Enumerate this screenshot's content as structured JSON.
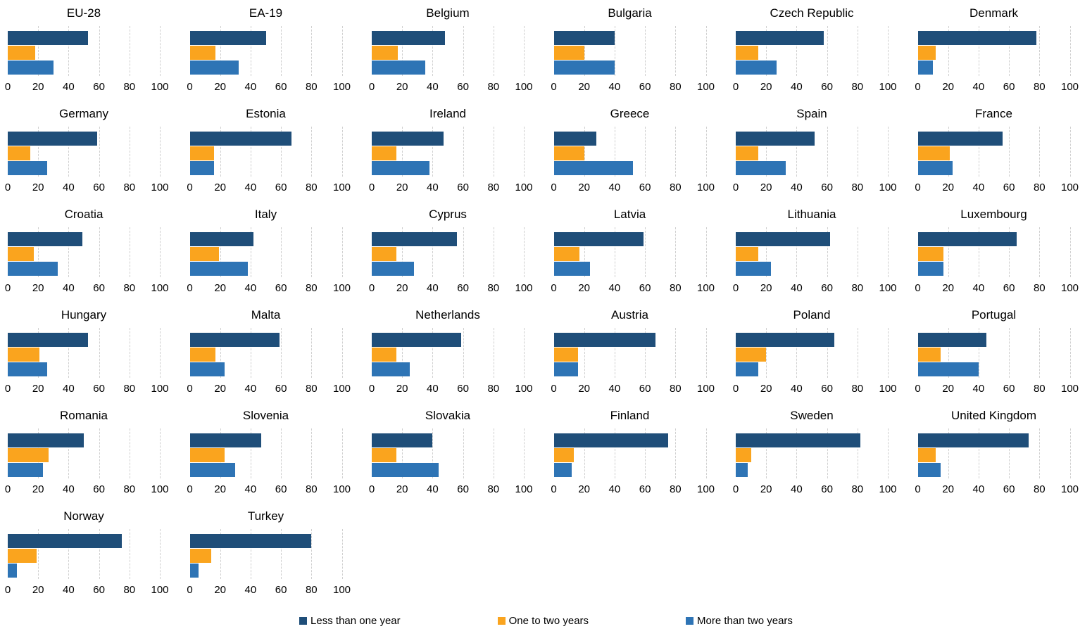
{
  "chart_data": {
    "type": "bar",
    "orientation": "horizontal",
    "layout": "small-multiples-grid-6-columns",
    "categories": [
      "Less than one year",
      "One to two years",
      "More than two years"
    ],
    "colors": [
      "#1f4e79",
      "#faa41e",
      "#2e74b5"
    ],
    "xlim": [
      0,
      100
    ],
    "xticks": [
      0,
      20,
      40,
      60,
      80,
      100
    ],
    "grid": "dashed-vertical",
    "legend_position": "bottom",
    "panels": [
      {
        "title": "EU-28",
        "values": [
          53,
          18,
          30
        ]
      },
      {
        "title": "EA-19",
        "values": [
          50,
          17,
          32
        ]
      },
      {
        "title": "Belgium",
        "values": [
          48,
          17,
          35
        ]
      },
      {
        "title": "Bulgaria",
        "values": [
          40,
          20,
          40
        ]
      },
      {
        "title": "Czech Republic",
        "values": [
          58,
          15,
          27
        ]
      },
      {
        "title": "Denmark",
        "values": [
          78,
          12,
          10
        ]
      },
      {
        "title": "Germany",
        "values": [
          59,
          15,
          26
        ]
      },
      {
        "title": "Estonia",
        "values": [
          67,
          16,
          16
        ]
      },
      {
        "title": "Ireland",
        "values": [
          47,
          16,
          38
        ]
      },
      {
        "title": "Greece",
        "values": [
          28,
          20,
          52
        ]
      },
      {
        "title": "Spain",
        "values": [
          52,
          15,
          33
        ]
      },
      {
        "title": "France",
        "values": [
          56,
          21,
          23
        ]
      },
      {
        "title": "Croatia",
        "values": [
          49,
          17,
          33
        ]
      },
      {
        "title": "Italy",
        "values": [
          42,
          19,
          38
        ]
      },
      {
        "title": "Cyprus",
        "values": [
          56,
          16,
          28
        ]
      },
      {
        "title": "Latvia",
        "values": [
          59,
          17,
          24
        ]
      },
      {
        "title": "Lithuania",
        "values": [
          62,
          15,
          23
        ]
      },
      {
        "title": "Luxembourg",
        "values": [
          65,
          17,
          17
        ]
      },
      {
        "title": "Hungary",
        "values": [
          53,
          21,
          26
        ]
      },
      {
        "title": "Malta",
        "values": [
          59,
          17,
          23
        ]
      },
      {
        "title": "Netherlands",
        "values": [
          59,
          16,
          25
        ]
      },
      {
        "title": "Austria",
        "values": [
          67,
          16,
          16
        ]
      },
      {
        "title": "Poland",
        "values": [
          65,
          20,
          15
        ]
      },
      {
        "title": "Portugal",
        "values": [
          45,
          15,
          40
        ]
      },
      {
        "title": "Romania",
        "values": [
          50,
          27,
          23
        ]
      },
      {
        "title": "Slovenia",
        "values": [
          47,
          23,
          30
        ]
      },
      {
        "title": "Slovakia",
        "values": [
          40,
          16,
          44
        ]
      },
      {
        "title": "Finland",
        "values": [
          75,
          13,
          12
        ]
      },
      {
        "title": "Sweden",
        "values": [
          82,
          10,
          8
        ]
      },
      {
        "title": "United Kingdom",
        "values": [
          73,
          12,
          15
        ]
      },
      {
        "title": "Norway",
        "values": [
          75,
          19,
          6
        ]
      },
      {
        "title": "Turkey",
        "values": [
          80,
          14,
          6
        ]
      }
    ]
  }
}
